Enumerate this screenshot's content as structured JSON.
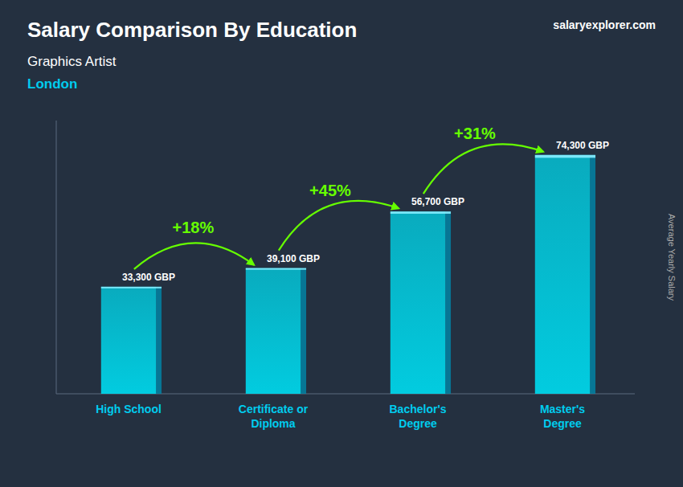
{
  "chart_data": {
    "type": "bar",
    "title": "Salary Comparison By Education",
    "subtitle": "Graphics Artist",
    "location": "London",
    "brand": "salaryexplorer.com",
    "ylabel": "Average Yearly Salary",
    "categories": [
      "High School",
      "Certificate or\nDiploma",
      "Bachelor's\nDegree",
      "Master's\nDegree"
    ],
    "values": [
      33300,
      39100,
      56700,
      74300
    ],
    "value_labels": [
      "33,300 GBP",
      "39,100 GBP",
      "56,700 GBP",
      "74,300 GBP"
    ],
    "data_labels": true,
    "annotations": [
      "+18%",
      "+45%",
      "+31%"
    ],
    "color": "#00d4e8",
    "ylim": [
      0,
      85000
    ],
    "tick_labels": "x",
    "grid": false
  }
}
